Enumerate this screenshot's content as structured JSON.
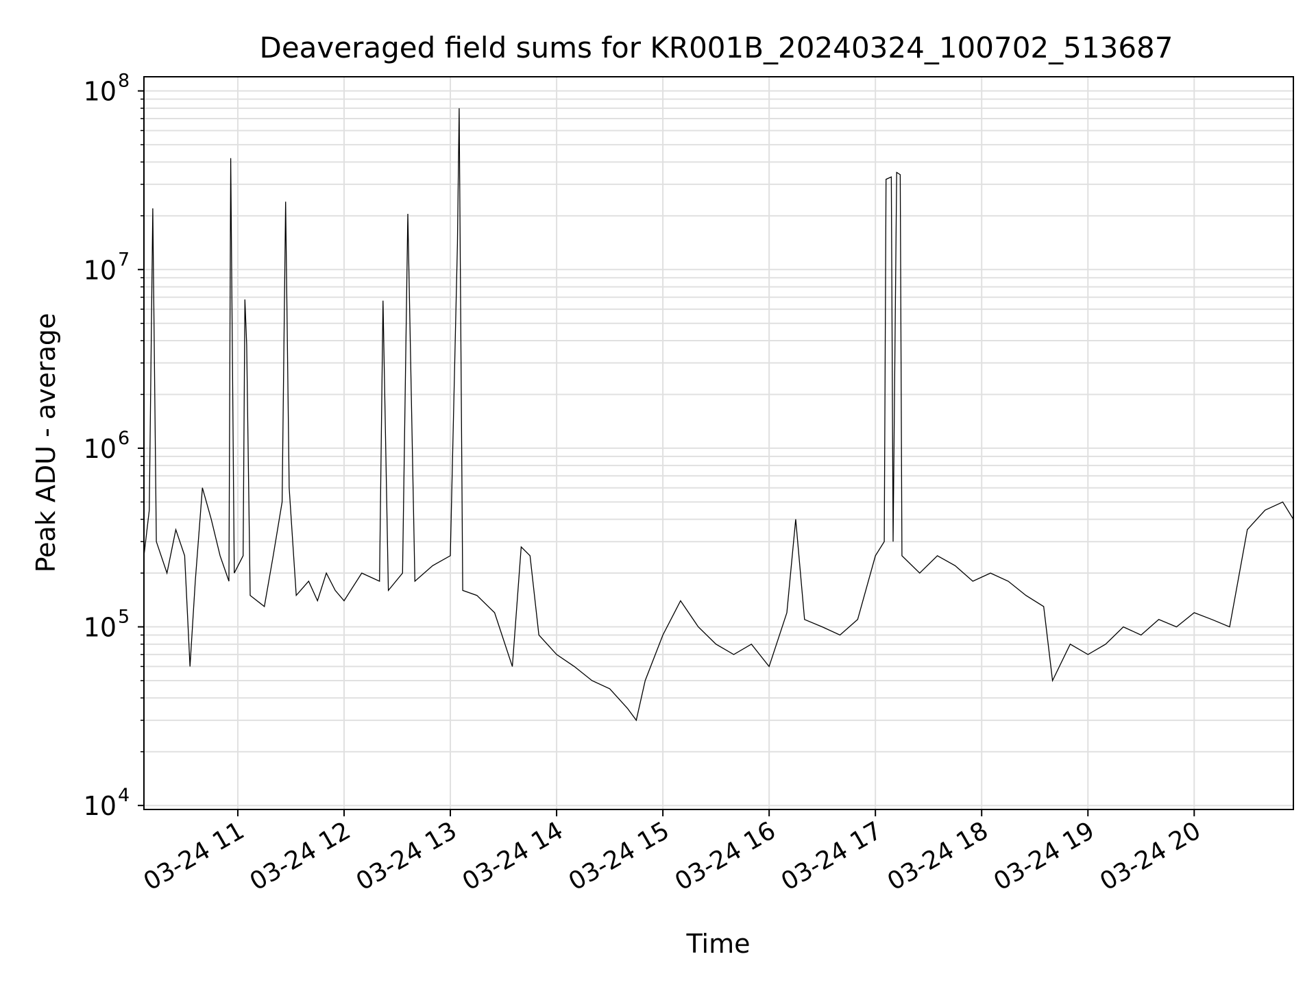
{
  "chart_data": {
    "type": "line",
    "title": "Deaveraged field sums for KR001B_20240324_100702_513687",
    "xlabel": "Time",
    "ylabel": "Peak ADU - average",
    "y_scale": "log",
    "ylim": [
      9500,
      120000000
    ],
    "xlim": [
      "2024-03-24 10:07",
      "2024-03-24 20:56"
    ],
    "grid": true,
    "line_color": "#000000",
    "grid_color": "#e0e0e0",
    "x_ticks": [
      {
        "value": "2024-03-24 11:00",
        "label": "03-24 11"
      },
      {
        "value": "2024-03-24 12:00",
        "label": "03-24 12"
      },
      {
        "value": "2024-03-24 13:00",
        "label": "03-24 13"
      },
      {
        "value": "2024-03-24 14:00",
        "label": "03-24 14"
      },
      {
        "value": "2024-03-24 15:00",
        "label": "03-24 15"
      },
      {
        "value": "2024-03-24 16:00",
        "label": "03-24 16"
      },
      {
        "value": "2024-03-24 17:00",
        "label": "03-24 17"
      },
      {
        "value": "2024-03-24 18:00",
        "label": "03-24 18"
      },
      {
        "value": "2024-03-24 19:00",
        "label": "03-24 19"
      },
      {
        "value": "2024-03-24 20:00",
        "label": "03-24 20"
      }
    ],
    "y_ticks": [
      {
        "value": 10000,
        "base": "10",
        "exp": "4"
      },
      {
        "value": 100000,
        "base": "10",
        "exp": "5"
      },
      {
        "value": 1000000,
        "base": "10",
        "exp": "6"
      },
      {
        "value": 10000000,
        "base": "10",
        "exp": "7"
      },
      {
        "value": 100000000,
        "base": "10",
        "exp": "8"
      }
    ],
    "series": [
      {
        "values": [
          [
            "2024-03-24 10:07",
            250000
          ],
          [
            "2024-03-24 10:10",
            450000
          ],
          [
            "2024-03-24 10:12",
            22000000
          ],
          [
            "2024-03-24 10:14",
            300000
          ],
          [
            "2024-03-24 10:20",
            200000
          ],
          [
            "2024-03-24 10:25",
            350000
          ],
          [
            "2024-03-24 10:30",
            250000
          ],
          [
            "2024-03-24 10:33",
            60000
          ],
          [
            "2024-03-24 10:36",
            180000
          ],
          [
            "2024-03-24 10:40",
            600000
          ],
          [
            "2024-03-24 10:45",
            400000
          ],
          [
            "2024-03-24 10:50",
            250000
          ],
          [
            "2024-03-24 10:55",
            180000
          ],
          [
            "2024-03-24 10:56",
            42000000
          ],
          [
            "2024-03-24 10:58",
            200000
          ],
          [
            "2024-03-24 11:03",
            250000
          ],
          [
            "2024-03-24 11:04",
            6800000
          ],
          [
            "2024-03-24 11:05",
            3800000
          ],
          [
            "2024-03-24 11:07",
            150000
          ],
          [
            "2024-03-24 11:15",
            130000
          ],
          [
            "2024-03-24 11:20",
            250000
          ],
          [
            "2024-03-24 11:25",
            500000
          ],
          [
            "2024-03-24 11:27",
            24000000
          ],
          [
            "2024-03-24 11:29",
            600000
          ],
          [
            "2024-03-24 11:33",
            150000
          ],
          [
            "2024-03-24 11:40",
            180000
          ],
          [
            "2024-03-24 11:45",
            140000
          ],
          [
            "2024-03-24 11:50",
            200000
          ],
          [
            "2024-03-24 11:55",
            160000
          ],
          [
            "2024-03-24 12:00",
            140000
          ],
          [
            "2024-03-24 12:10",
            200000
          ],
          [
            "2024-03-24 12:20",
            180000
          ],
          [
            "2024-03-24 12:22",
            6700000
          ],
          [
            "2024-03-24 12:25",
            160000
          ],
          [
            "2024-03-24 12:33",
            200000
          ],
          [
            "2024-03-24 12:36",
            20500000
          ],
          [
            "2024-03-24 12:40",
            180000
          ],
          [
            "2024-03-24 12:50",
            220000
          ],
          [
            "2024-03-24 13:00",
            250000
          ],
          [
            "2024-03-24 13:04",
            14000000
          ],
          [
            "2024-03-24 13:05",
            80000000
          ],
          [
            "2024-03-24 13:07",
            160000
          ],
          [
            "2024-03-24 13:15",
            150000
          ],
          [
            "2024-03-24 13:25",
            120000
          ],
          [
            "2024-03-24 13:35",
            60000
          ],
          [
            "2024-03-24 13:40",
            280000
          ],
          [
            "2024-03-24 13:45",
            250000
          ],
          [
            "2024-03-24 13:50",
            90000
          ],
          [
            "2024-03-24 14:00",
            70000
          ],
          [
            "2024-03-24 14:10",
            60000
          ],
          [
            "2024-03-24 14:20",
            50000
          ],
          [
            "2024-03-24 14:30",
            45000
          ],
          [
            "2024-03-24 14:40",
            35000
          ],
          [
            "2024-03-24 14:45",
            30000
          ],
          [
            "2024-03-24 14:50",
            50000
          ],
          [
            "2024-03-24 15:00",
            90000
          ],
          [
            "2024-03-24 15:10",
            140000
          ],
          [
            "2024-03-24 15:20",
            100000
          ],
          [
            "2024-03-24 15:30",
            80000
          ],
          [
            "2024-03-24 15:40",
            70000
          ],
          [
            "2024-03-24 15:50",
            80000
          ],
          [
            "2024-03-24 16:00",
            60000
          ],
          [
            "2024-03-24 16:10",
            120000
          ],
          [
            "2024-03-24 16:15",
            400000
          ],
          [
            "2024-03-24 16:20",
            110000
          ],
          [
            "2024-03-24 16:30",
            100000
          ],
          [
            "2024-03-24 16:40",
            90000
          ],
          [
            "2024-03-24 16:50",
            110000
          ],
          [
            "2024-03-24 17:00",
            250000
          ],
          [
            "2024-03-24 17:05",
            300000
          ],
          [
            "2024-03-24 17:06",
            32000000
          ],
          [
            "2024-03-24 17:09",
            33000000
          ],
          [
            "2024-03-24 17:10",
            300000
          ],
          [
            "2024-03-24 17:12",
            35000000
          ],
          [
            "2024-03-24 17:14",
            34000000
          ],
          [
            "2024-03-24 17:15",
            250000
          ],
          [
            "2024-03-24 17:25",
            200000
          ],
          [
            "2024-03-24 17:35",
            250000
          ],
          [
            "2024-03-24 17:45",
            220000
          ],
          [
            "2024-03-24 17:55",
            180000
          ],
          [
            "2024-03-24 18:05",
            200000
          ],
          [
            "2024-03-24 18:15",
            180000
          ],
          [
            "2024-03-24 18:25",
            150000
          ],
          [
            "2024-03-24 18:35",
            130000
          ],
          [
            "2024-03-24 18:40",
            50000
          ],
          [
            "2024-03-24 18:50",
            80000
          ],
          [
            "2024-03-24 19:00",
            70000
          ],
          [
            "2024-03-24 19:10",
            80000
          ],
          [
            "2024-03-24 19:20",
            100000
          ],
          [
            "2024-03-24 19:30",
            90000
          ],
          [
            "2024-03-24 19:40",
            110000
          ],
          [
            "2024-03-24 19:50",
            100000
          ],
          [
            "2024-03-24 20:00",
            120000
          ],
          [
            "2024-03-24 20:10",
            110000
          ],
          [
            "2024-03-24 20:20",
            100000
          ],
          [
            "2024-03-24 20:30",
            350000
          ],
          [
            "2024-03-24 20:40",
            450000
          ],
          [
            "2024-03-24 20:50",
            500000
          ],
          [
            "2024-03-24 20:56",
            400000
          ]
        ]
      }
    ]
  }
}
